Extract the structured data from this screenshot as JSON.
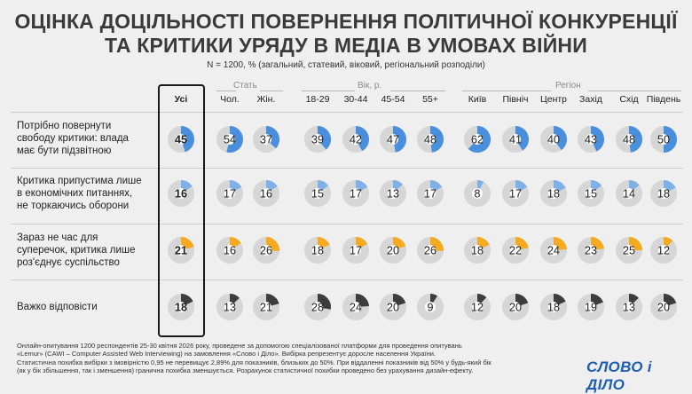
{
  "title_line1": "ОЦІНКА ДОЦІЛЬНОСТІ ПОВЕРНЕННЯ ПОЛІТИЧНОЇ КОНКУРЕНЦІЇ",
  "title_line2": "ТА КРИТИКИ УРЯДУ В МЕДІА В УМОВАХ ВІЙНИ",
  "subtitle": "N = 1200, % (загальний, статевий, віковий, регіональний розподіли)",
  "groups": {
    "gender": "Стать",
    "age": "Вік, р.",
    "region": "Регіон"
  },
  "footnote": [
    "Онлайн-опитування 1200 респондентів 25-30 квітня 2026 року, проведене за допомогою спеціалізованої платформи для проведення опитувань",
    "«Lemur» (CAWI – Computer Assisted Web Interviewing) на замовлення «Слово і Діло». Вибірка репрезентує доросле населення України.",
    "Статистична похибка вибірки з імовірністю 0,95 не перевищує 2,89% для показників, близьких до 50%. При віддаленні показників від 50% у будь-який бік",
    "(як у бік збільшення, так і зменшення) гранична похибка зменшується. Розрахунок статистичної похибки проведено без урахування дизайн-ефекту."
  ],
  "logo": "СЛОВО і ДІЛО",
  "colors": {
    "track": "#d6d6d6",
    "center": "#ffffff",
    "rows": [
      "#4a8fde",
      "#7fb0e8",
      "#f5aa1f",
      "#3d3d3d"
    ]
  },
  "chart_data": {
    "type": "donut_grid",
    "unit": "%",
    "columns": [
      "Усі",
      "Чол.",
      "Жін.",
      "18-29",
      "30-44",
      "45-54",
      "55+",
      "Київ",
      "Північ",
      "Центр",
      "Захід",
      "Схід",
      "Південь"
    ],
    "rows": [
      {
        "label": [
          "Потрібно повернути",
          "свободу критики: влада",
          "має бути підзвітною"
        ],
        "values": [
          45,
          54,
          37,
          39,
          42,
          47,
          48,
          62,
          41,
          40,
          43,
          48,
          50
        ]
      },
      {
        "label": [
          "Критика припустима лише",
          "в економічних питаннях,",
          "не торкаючись оборони"
        ],
        "values": [
          16,
          17,
          16,
          15,
          17,
          13,
          17,
          8,
          17,
          18,
          15,
          14,
          18
        ]
      },
      {
        "label": [
          "Зараз не час для",
          "суперечок, критика лише",
          "роз'єднує суспільство"
        ],
        "values": [
          21,
          16,
          26,
          18,
          17,
          20,
          26,
          18,
          22,
          24,
          23,
          25,
          12
        ]
      },
      {
        "label": [
          "Важко відповісти"
        ],
        "values": [
          18,
          13,
          21,
          28,
          24,
          20,
          9,
          12,
          20,
          18,
          19,
          13,
          20
        ]
      }
    ]
  }
}
